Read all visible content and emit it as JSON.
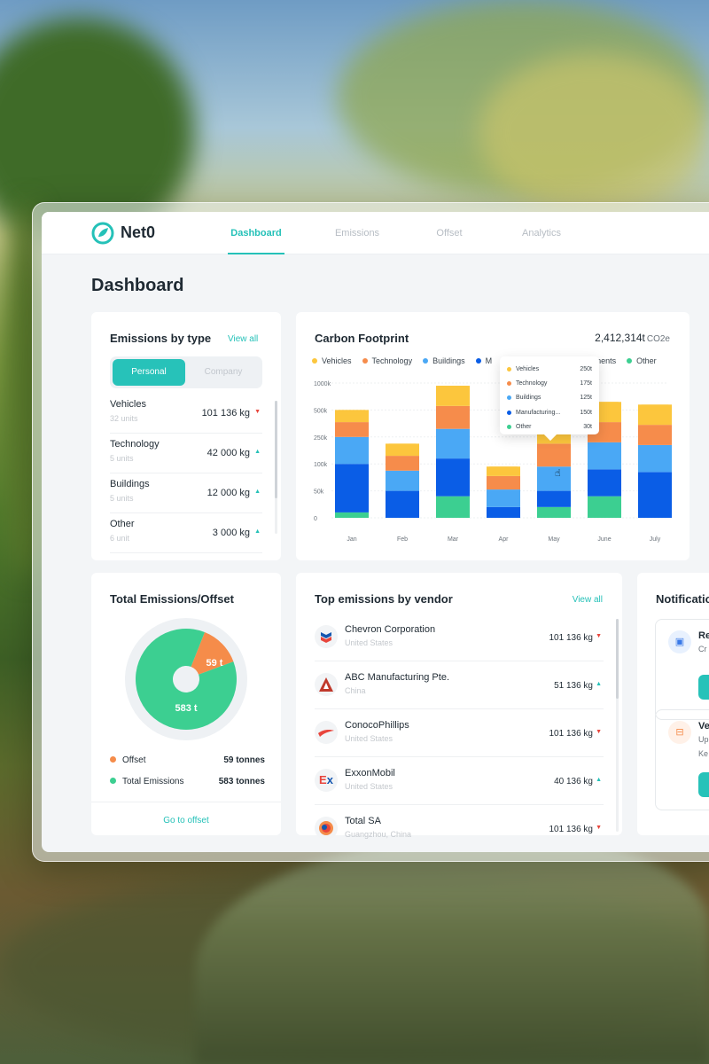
{
  "app": {
    "name": "Net0",
    "nav": [
      "Dashboard",
      "Emissions",
      "Offset",
      "Analytics"
    ],
    "active_nav": "Dashboard"
  },
  "page_title": "Dashboard",
  "emissions_by_type": {
    "title": "Emissions by type",
    "view_all": "View all",
    "toggle": [
      "Personal",
      "Company"
    ],
    "selected": "Personal",
    "items": [
      {
        "name": "Vehicles",
        "sub": "32 units",
        "value": "101 136 kg",
        "trend": "down"
      },
      {
        "name": "Technology",
        "sub": "5 units",
        "value": "42 000 kg",
        "trend": "up"
      },
      {
        "name": "Buildings",
        "sub": "5 units",
        "value": "12 000 kg",
        "trend": "up"
      },
      {
        "name": "Other",
        "sub": "6 unit",
        "value": "3 000 kg",
        "trend": "up"
      }
    ]
  },
  "carbon_footprint": {
    "title": "Carbon Footprint",
    "total": "2,412,314t",
    "unit": "CO2e",
    "tooltip": {
      "rows": [
        {
          "name": "Vehicles",
          "value": "250t"
        },
        {
          "name": "Technology",
          "value": "175t"
        },
        {
          "name": "Buildings",
          "value": "125t"
        },
        {
          "name": "Manufacturing...",
          "value": "150t"
        },
        {
          "name": "Other",
          "value": "30t"
        }
      ]
    }
  },
  "chart_data": {
    "type": "bar",
    "stacked": true,
    "categories": [
      "Jan",
      "Feb",
      "Mar",
      "Apr",
      "May",
      "June",
      "July"
    ],
    "yticks": [
      "0",
      "50k",
      "100k",
      "250k",
      "500k",
      "1000k"
    ],
    "legend_labels": [
      "Vehicles",
      "Technology",
      "Buildings",
      "M",
      "nents",
      "Other"
    ],
    "series": [
      {
        "name": "Other",
        "color": "#3ccf91",
        "values": [
          0.2,
          0.0,
          0.8,
          0.0,
          0.4,
          0.8,
          0.0
        ]
      },
      {
        "name": "Manufacturing",
        "color": "#0a5de6",
        "values": [
          1.8,
          1.0,
          1.4,
          0.4,
          0.6,
          1.0,
          1.7
        ]
      },
      {
        "name": "Buildings",
        "color": "#4aa8f5",
        "values": [
          1.0,
          0.75,
          1.1,
          0.65,
          0.9,
          1.0,
          1.0
        ]
      },
      {
        "name": "Technology",
        "color": "#f68c4b",
        "values": [
          0.55,
          0.55,
          0.85,
          0.5,
          0.85,
          0.75,
          0.75
        ]
      },
      {
        "name": "Vehicles",
        "color": "#fcc63d",
        "values": [
          0.45,
          0.45,
          0.75,
          0.35,
          0.45,
          0.75,
          0.75
        ]
      }
    ],
    "ylim": [
      0,
      5
    ]
  },
  "total_offset": {
    "title": "Total Emissions/Offset",
    "offset_label": "Offset",
    "offset_value": "59 tonnes",
    "emissions_label": "Total Emissions",
    "emissions_value": "583 tonnes",
    "donut_offset_text": "59 t",
    "donut_total_text": "583 t",
    "offset_t": 59,
    "emissions_t": 583,
    "footer": "Go to offset"
  },
  "vendors": {
    "title": "Top emissions by vendor",
    "view_all": "View all",
    "items": [
      {
        "name": "Chevron Corporation",
        "sub": "United States",
        "value": "101 136 kg",
        "trend": "down",
        "logo": "chevron-logo"
      },
      {
        "name": "ABC Manufacturing Pte.",
        "sub": "China",
        "value": "51 136 kg",
        "trend": "up",
        "logo": "abc-logo"
      },
      {
        "name": "ConocoPhillips",
        "sub": "United States",
        "value": "101 136 kg",
        "trend": "down",
        "logo": "conoco-logo"
      },
      {
        "name": "ExxonMobil",
        "sub": "United States",
        "value": "40 136 kg",
        "trend": "up",
        "logo": "exxon-logo"
      },
      {
        "name": "Total SA",
        "sub": "Guangzhou, China",
        "value": "101 136 kg",
        "trend": "down",
        "logo": "total-logo"
      }
    ]
  },
  "notifications": {
    "title": "Notificatio",
    "items": [
      {
        "title": "Re",
        "line1": "Cr",
        "line2": ""
      },
      {
        "title": "Ve",
        "line1": "Up",
        "line2": "Ke"
      }
    ]
  },
  "colors": {
    "accent": "#25c1b8",
    "offset": "#f58c4a",
    "emissions": "#3ccf91"
  }
}
